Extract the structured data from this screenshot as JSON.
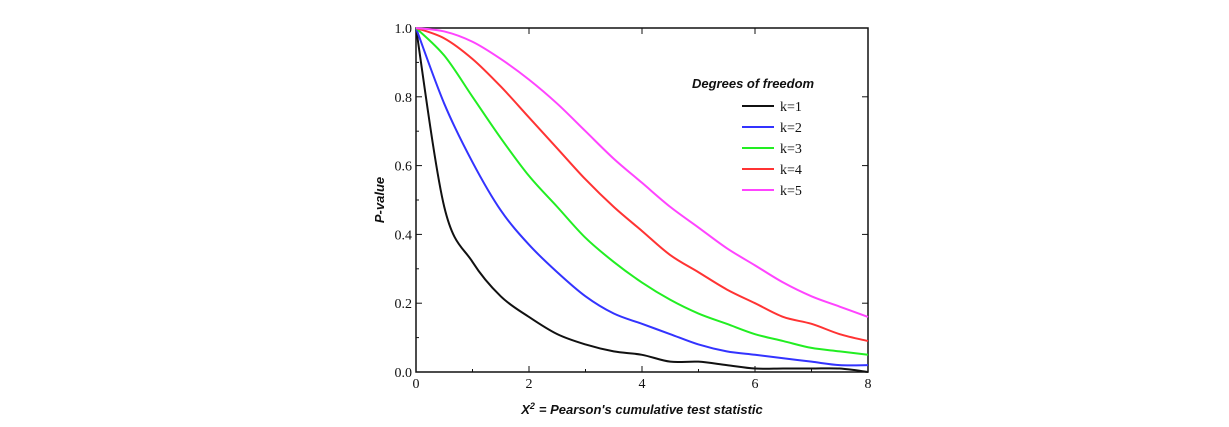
{
  "chart_data": {
    "type": "line",
    "title": "",
    "xlabel": "= Pearson's cumulative test statistic",
    "xlabel_symbol": "X",
    "xlabel_superscript": "2",
    "ylabel": "P-value",
    "xlim": [
      0,
      8
    ],
    "ylim": [
      0.0,
      1.0
    ],
    "xticks": [
      "0",
      "2",
      "4",
      "6",
      "8"
    ],
    "yticks": [
      "0.0",
      "0.2",
      "0.4",
      "0.6",
      "0.8",
      "1.0"
    ],
    "grid": false,
    "legend": {
      "title": "Degrees of freedom",
      "placement": "top-right"
    },
    "x": [
      0,
      0.5,
      1,
      1.5,
      2,
      2.5,
      3,
      3.5,
      4,
      4.5,
      5,
      5.5,
      6,
      6.5,
      7,
      7.5,
      8
    ],
    "series": [
      {
        "name": "k=1",
        "color": "#111111",
        "values": [
          1.0,
          0.48,
          0.32,
          0.22,
          0.16,
          0.11,
          0.08,
          0.06,
          0.05,
          0.03,
          0.03,
          0.02,
          0.01,
          0.01,
          0.01,
          0.01,
          0.0
        ]
      },
      {
        "name": "k=2",
        "color": "#3333ff",
        "values": [
          1.0,
          0.78,
          0.61,
          0.47,
          0.37,
          0.29,
          0.22,
          0.17,
          0.14,
          0.11,
          0.08,
          0.06,
          0.05,
          0.04,
          0.03,
          0.02,
          0.02
        ]
      },
      {
        "name": "k=3",
        "color": "#22ee22",
        "values": [
          1.0,
          0.92,
          0.8,
          0.68,
          0.57,
          0.48,
          0.39,
          0.32,
          0.26,
          0.21,
          0.17,
          0.14,
          0.11,
          0.09,
          0.07,
          0.06,
          0.05
        ]
      },
      {
        "name": "k=4",
        "color": "#ff3333",
        "values": [
          1.0,
          0.97,
          0.91,
          0.83,
          0.74,
          0.65,
          0.56,
          0.48,
          0.41,
          0.34,
          0.29,
          0.24,
          0.2,
          0.16,
          0.14,
          0.11,
          0.09
        ]
      },
      {
        "name": "k=5",
        "color": "#ff44ff",
        "values": [
          1.0,
          0.99,
          0.96,
          0.91,
          0.85,
          0.78,
          0.7,
          0.62,
          0.55,
          0.48,
          0.42,
          0.36,
          0.31,
          0.26,
          0.22,
          0.19,
          0.16
        ]
      }
    ]
  }
}
